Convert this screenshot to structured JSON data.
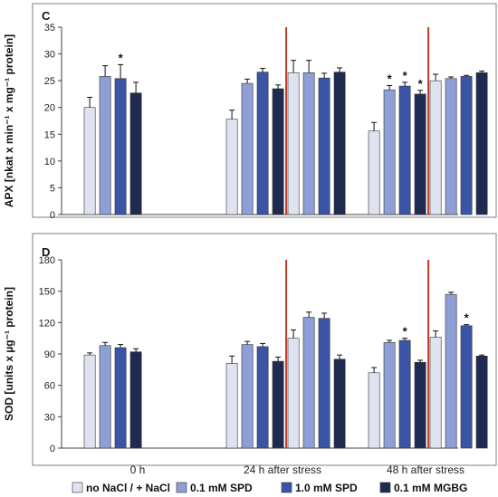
{
  "chart_data": [
    {
      "type": "bar",
      "panel_label": "C",
      "ylabel": "APX  [nkat x min⁻¹ x mg⁻¹ protein]",
      "ylim": [
        0,
        35
      ],
      "yticks": [
        "0",
        "5",
        "10",
        "15",
        "20",
        "25",
        "30",
        "35"
      ],
      "groups": [
        {
          "name": "0 h",
          "bars": [
            {
              "series": "no NaCl / + NaCl",
              "value": 20.0,
              "err": 1.9,
              "star": false
            },
            {
              "series": "0.1 mM SPD",
              "value": 25.8,
              "err": 2.0,
              "star": false
            },
            {
              "series": "1.0 mM SPD",
              "value": 25.4,
              "err": 2.6,
              "star": true
            },
            {
              "series": "0.1 mM MGBG",
              "value": 22.7,
              "err": 2.0,
              "star": false
            }
          ]
        },
        {
          "name": "24 h after stress",
          "bars": [
            {
              "series": "no NaCl / + NaCl",
              "value": 17.8,
              "err": 1.7,
              "star": false
            },
            {
              "series": "0.1 mM SPD",
              "value": 24.5,
              "err": 0.8,
              "star": false
            },
            {
              "series": "1.0 mM SPD",
              "value": 26.6,
              "err": 0.7,
              "star": false
            },
            {
              "series": "0.1 mM MGBG",
              "value": 23.5,
              "err": 0.7,
              "star": false
            },
            {
              "series": "no NaCl / + NaCl",
              "value": 26.5,
              "err": 2.3,
              "star": false
            },
            {
              "series": "0.1 mM SPD",
              "value": 26.5,
              "err": 2.3,
              "star": false
            },
            {
              "series": "1.0 mM SPD",
              "value": 25.5,
              "err": 0.9,
              "star": false
            },
            {
              "series": "0.1 mM MGBG",
              "value": 26.6,
              "err": 0.8,
              "star": false
            }
          ]
        },
        {
          "name": "48 h after stress",
          "bars": [
            {
              "series": "no NaCl / + NaCl",
              "value": 15.6,
              "err": 1.6,
              "star": false
            },
            {
              "series": "0.1 mM SPD",
              "value": 23.3,
              "err": 0.8,
              "star": true
            },
            {
              "series": "1.0 mM SPD",
              "value": 24.0,
              "err": 0.7,
              "star": true
            },
            {
              "series": "0.1 mM MGBG",
              "value": 22.5,
              "err": 0.7,
              "star": true
            },
            {
              "series": "no NaCl / + NaCl",
              "value": 25.0,
              "err": 1.2,
              "star": false
            },
            {
              "series": "0.1 mM SPD",
              "value": 25.4,
              "err": 0.3,
              "star": false
            },
            {
              "series": "1.0 mM SPD",
              "value": 25.8,
              "err": 0.2,
              "star": false
            },
            {
              "series": "0.1 mM MGBG",
              "value": 26.5,
              "err": 0.3,
              "star": false
            }
          ]
        }
      ],
      "separators_after_group_bar": [
        {
          "group": 1,
          "after_bar": 3
        },
        {
          "group": 2,
          "after_bar": 3
        }
      ]
    },
    {
      "type": "bar",
      "panel_label": "D",
      "ylabel": "SOD [units x µg⁻¹ protein]",
      "ylim": [
        0,
        180
      ],
      "yticks": [
        "0",
        "30",
        "60",
        "90",
        "120",
        "150",
        "180"
      ],
      "groups": [
        {
          "name": "0 h",
          "bars": [
            {
              "series": "no NaCl / + NaCl",
              "value": 89,
              "err": 2,
              "star": false
            },
            {
              "series": "0.1 mM SPD",
              "value": 98,
              "err": 3,
              "star": false
            },
            {
              "series": "1.0 mM SPD",
              "value": 96,
              "err": 3,
              "star": false
            },
            {
              "series": "0.1 mM MGBG",
              "value": 92,
              "err": 3,
              "star": false
            }
          ]
        },
        {
          "name": "24 h after stress",
          "bars": [
            {
              "series": "no NaCl / + NaCl",
              "value": 81,
              "err": 7,
              "star": false
            },
            {
              "series": "0.1 mM SPD",
              "value": 99,
              "err": 3,
              "star": false
            },
            {
              "series": "1.0 mM SPD",
              "value": 97,
              "err": 3,
              "star": false
            },
            {
              "series": "0.1 mM MGBG",
              "value": 83,
              "err": 4,
              "star": false
            },
            {
              "series": "no NaCl / + NaCl",
              "value": 105,
              "err": 8,
              "star": false
            },
            {
              "series": "0.1 mM SPD",
              "value": 125,
              "err": 5,
              "star": false
            },
            {
              "series": "1.0 mM SPD",
              "value": 124,
              "err": 5,
              "star": false
            },
            {
              "series": "0.1 mM MGBG",
              "value": 85,
              "err": 4,
              "star": false
            }
          ]
        },
        {
          "name": "48 h after stress",
          "bars": [
            {
              "series": "no NaCl / + NaCl",
              "value": 72,
              "err": 5,
              "star": false
            },
            {
              "series": "0.1 mM SPD",
              "value": 101,
              "err": 2,
              "star": false
            },
            {
              "series": "1.0 mM SPD",
              "value": 103,
              "err": 2,
              "star": true
            },
            {
              "series": "0.1 mM MGBG",
              "value": 82,
              "err": 2,
              "star": false
            },
            {
              "series": "no NaCl / + NaCl",
              "value": 106,
              "err": 6,
              "star": false
            },
            {
              "series": "0.1 mM SPD",
              "value": 147,
              "err": 2,
              "star": false
            },
            {
              "series": "1.0 mM SPD",
              "value": 117,
              "err": 1,
              "star": true
            },
            {
              "series": "0.1 mM MGBG",
              "value": 88,
              "err": 1,
              "star": false
            }
          ]
        }
      ],
      "separators_after_group_bar": [
        {
          "group": 1,
          "after_bar": 3
        },
        {
          "group": 2,
          "after_bar": 3
        }
      ]
    }
  ],
  "categories": [
    "0 h",
    "24 h after stress",
    "48 h after stress"
  ],
  "legend": [
    {
      "label": "no NaCl / + NaCl",
      "color": "#dfe3f0"
    },
    {
      "label": "0.1 mM SPD",
      "color": "#8f9fd6"
    },
    {
      "label": "1.0 mM SPD",
      "color": "#3a54a8"
    },
    {
      "label": "0.1 mM MGBG",
      "color": "#1f2a50"
    }
  ],
  "colors": {
    "separator": "#c0392b",
    "frame": "#7f7f7f",
    "axis": "#404040",
    "error_bar": "#111111"
  }
}
